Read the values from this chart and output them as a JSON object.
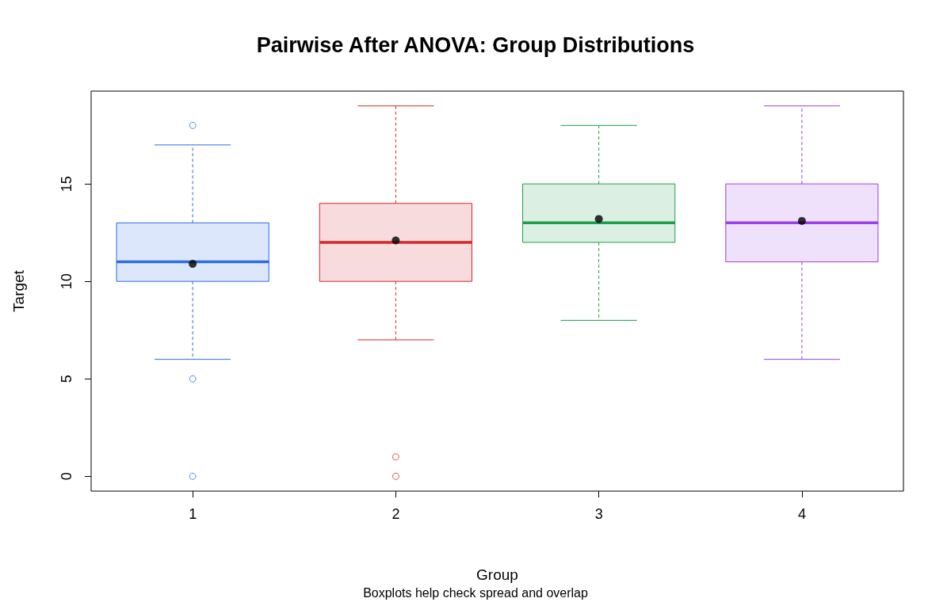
{
  "chart_data": {
    "type": "box",
    "title": "Pairwise After ANOVA: Group Distributions",
    "xlabel": "Group",
    "ylabel": "Target",
    "annotations": [
      "Boxplots help check spread and overlap"
    ],
    "categories": [
      "1",
      "2",
      "3",
      "4"
    ],
    "colors": [
      "#2b6be3",
      "#d62728",
      "#1e9e4a",
      "#9b3fe6"
    ],
    "boxes": [
      {
        "low": 6,
        "q1": 10,
        "median": 11,
        "q3": 13,
        "high": 17,
        "mean": 10.9,
        "outliers": [
          18,
          5,
          0
        ]
      },
      {
        "low": 7,
        "q1": 10,
        "median": 12,
        "q3": 14,
        "high": 19,
        "mean": 12.1,
        "outliers": [
          1,
          0
        ]
      },
      {
        "low": 8,
        "q1": 12,
        "median": 13,
        "q3": 15,
        "high": 18,
        "mean": 13.2
      },
      {
        "low": 6,
        "q1": 11,
        "median": 13,
        "q3": 15,
        "high": 19,
        "mean": 13.1
      }
    ],
    "ylim": [
      -0.76,
      19.76
    ],
    "yticks": [
      0,
      5,
      10,
      15
    ],
    "grid": false,
    "marker": "circle",
    "line_style": "dashed"
  }
}
